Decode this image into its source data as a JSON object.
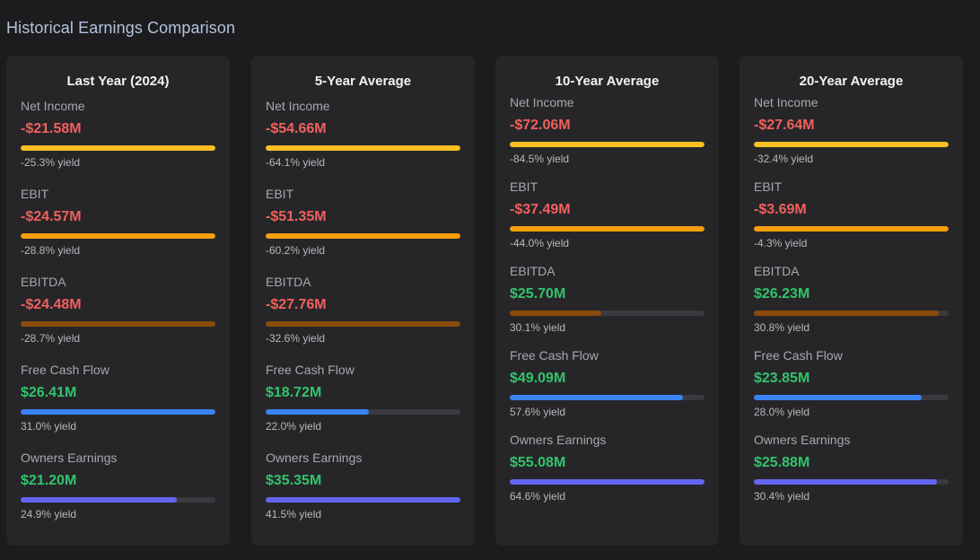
{
  "title": "Historical Earnings Comparison",
  "colors": {
    "negative": "#f0605d",
    "positive": "#32c46b",
    "net_income_bar": "#fbbf24",
    "ebit_bar": "#f59e0b",
    "ebitda_bar": "#8a4b0c",
    "fcf_bar": "#3b82f6",
    "owners_bar": "#6366f1"
  },
  "periods": [
    {
      "title": "Last Year (2024)",
      "metrics": [
        {
          "label": "Net Income",
          "value": "-$21.58M",
          "yield": "-25.3% yield",
          "sign": "neg",
          "bar_fill": 1.0,
          "bar_color": "#fbbf24"
        },
        {
          "label": "EBIT",
          "value": "-$24.57M",
          "yield": "-28.8% yield",
          "sign": "neg",
          "bar_fill": 1.0,
          "bar_color": "#f59e0b"
        },
        {
          "label": "EBITDA",
          "value": "-$24.48M",
          "yield": "-28.7% yield",
          "sign": "neg",
          "bar_fill": 1.0,
          "bar_color": "#8a4b0c"
        },
        {
          "label": "Free Cash Flow",
          "value": "$26.41M",
          "yield": "31.0% yield",
          "sign": "pos",
          "bar_fill": 1.0,
          "bar_color": "#3b82f6"
        },
        {
          "label": "Owners Earnings",
          "value": "$21.20M",
          "yield": "24.9% yield",
          "sign": "pos",
          "bar_fill": 0.8,
          "bar_color": "#6366f1"
        }
      ]
    },
    {
      "title": "5-Year Average",
      "metrics": [
        {
          "label": "Net Income",
          "value": "-$54.66M",
          "yield": "-64.1% yield",
          "sign": "neg",
          "bar_fill": 1.0,
          "bar_color": "#fbbf24"
        },
        {
          "label": "EBIT",
          "value": "-$51.35M",
          "yield": "-60.2% yield",
          "sign": "neg",
          "bar_fill": 1.0,
          "bar_color": "#f59e0b"
        },
        {
          "label": "EBITDA",
          "value": "-$27.76M",
          "yield": "-32.6% yield",
          "sign": "neg",
          "bar_fill": 1.0,
          "bar_color": "#8a4b0c"
        },
        {
          "label": "Free Cash Flow",
          "value": "$18.72M",
          "yield": "22.0% yield",
          "sign": "pos",
          "bar_fill": 0.53,
          "bar_color": "#3b82f6"
        },
        {
          "label": "Owners Earnings",
          "value": "$35.35M",
          "yield": "41.5% yield",
          "sign": "pos",
          "bar_fill": 1.0,
          "bar_color": "#6366f1"
        }
      ]
    },
    {
      "title": "10-Year Average",
      "metrics": [
        {
          "label": "Net Income",
          "value": "-$72.06M",
          "yield": "-84.5% yield",
          "sign": "neg",
          "bar_fill": 1.0,
          "bar_color": "#fbbf24"
        },
        {
          "label": "EBIT",
          "value": "-$37.49M",
          "yield": "-44.0% yield",
          "sign": "neg",
          "bar_fill": 1.0,
          "bar_color": "#f59e0b"
        },
        {
          "label": "EBITDA",
          "value": "$25.70M",
          "yield": "30.1% yield",
          "sign": "pos",
          "bar_fill": 0.47,
          "bar_color": "#8a4b0c"
        },
        {
          "label": "Free Cash Flow",
          "value": "$49.09M",
          "yield": "57.6% yield",
          "sign": "pos",
          "bar_fill": 0.89,
          "bar_color": "#3b82f6"
        },
        {
          "label": "Owners Earnings",
          "value": "$55.08M",
          "yield": "64.6% yield",
          "sign": "pos",
          "bar_fill": 1.0,
          "bar_color": "#6366f1"
        }
      ]
    },
    {
      "title": "20-Year Average",
      "metrics": [
        {
          "label": "Net Income",
          "value": "-$27.64M",
          "yield": "-32.4% yield",
          "sign": "neg",
          "bar_fill": 1.0,
          "bar_color": "#fbbf24"
        },
        {
          "label": "EBIT",
          "value": "-$3.69M",
          "yield": "-4.3% yield",
          "sign": "neg",
          "bar_fill": 1.0,
          "bar_color": "#f59e0b"
        },
        {
          "label": "EBITDA",
          "value": "$26.23M",
          "yield": "30.8% yield",
          "sign": "pos",
          "bar_fill": 0.95,
          "bar_color": "#8a4b0c"
        },
        {
          "label": "Free Cash Flow",
          "value": "$23.85M",
          "yield": "28.0% yield",
          "sign": "pos",
          "bar_fill": 0.86,
          "bar_color": "#3b82f6"
        },
        {
          "label": "Owners Earnings",
          "value": "$25.88M",
          "yield": "30.4% yield",
          "sign": "pos",
          "bar_fill": 0.94,
          "bar_color": "#6366f1"
        }
      ]
    }
  ]
}
